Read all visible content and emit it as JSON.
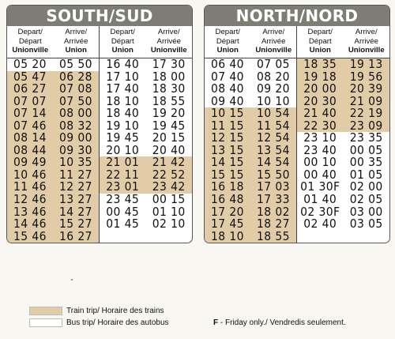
{
  "south": {
    "title": "SOUTH/SUD",
    "headers": [
      {
        "l1": "Depart/",
        "l2": "Départ",
        "station": "Unionville"
      },
      {
        "l1": "Arrive/",
        "l2": "Arrivée",
        "station": "Union"
      },
      {
        "l1": "Depart/",
        "l2": "Départ",
        "station": "Union"
      },
      {
        "l1": "Arrive/",
        "l2": "Arrivée",
        "station": "Unionville"
      }
    ],
    "left": [
      {
        "d": "05 20",
        "a": "05 50",
        "train": false
      },
      {
        "d": "05 47",
        "a": "06 28",
        "train": true
      },
      {
        "d": "06 27",
        "a": "07 08",
        "train": true
      },
      {
        "d": "07 07",
        "a": "07 50",
        "train": true
      },
      {
        "d": "07 14",
        "a": "08 00",
        "train": true
      },
      {
        "d": "07 46",
        "a": "08 32",
        "train": true
      },
      {
        "d": "08 14",
        "a": "09 00",
        "train": true
      },
      {
        "d": "08 44",
        "a": "09 30",
        "train": true
      },
      {
        "d": "09 49",
        "a": "10 35",
        "train": true
      },
      {
        "d": "10 46",
        "a": "11 27",
        "train": true
      },
      {
        "d": "11 46",
        "a": "12 27",
        "train": true
      },
      {
        "d": "12 46",
        "a": "13 27",
        "train": true
      },
      {
        "d": "13 46",
        "a": "14 27",
        "train": true
      },
      {
        "d": "14 46",
        "a": "15 27",
        "train": true
      },
      {
        "d": "15 46",
        "a": "16 27",
        "train": true
      }
    ],
    "right": [
      {
        "d": "16 40",
        "a": "17 30",
        "train": false
      },
      {
        "d": "17 10",
        "a": "18 00",
        "train": false
      },
      {
        "d": "17 40",
        "a": "18 30",
        "train": false
      },
      {
        "d": "18 10",
        "a": "18 55",
        "train": false
      },
      {
        "d": "18 40",
        "a": "19 20",
        "train": false
      },
      {
        "d": "19 10",
        "a": "19 45",
        "train": false
      },
      {
        "d": "19 45",
        "a": "20 15",
        "train": false
      },
      {
        "d": "20 10",
        "a": "20 40",
        "train": false
      },
      {
        "d": "21 01",
        "a": "21 42",
        "train": true
      },
      {
        "d": "22 11",
        "a": "22 52",
        "train": true
      },
      {
        "d": "23 01",
        "a": "23 42",
        "train": true
      },
      {
        "d": "23 45",
        "a": "00 15",
        "train": false
      },
      {
        "d": "00 45",
        "a": "01 10",
        "train": false
      },
      {
        "d": "01 45",
        "a": "02 10",
        "train": false
      }
    ]
  },
  "north": {
    "title": "NORTH/NORD",
    "headers": [
      {
        "l1": "Depart/",
        "l2": "Départ",
        "station": "Union"
      },
      {
        "l1": "Arrive/",
        "l2": "Arrivée",
        "station": "Unionville"
      },
      {
        "l1": "Depart/",
        "l2": "Départ",
        "station": "Union"
      },
      {
        "l1": "Arrive/",
        "l2": "Arrivée",
        "station": "Unionville"
      }
    ],
    "left": [
      {
        "d": "06 40",
        "a": "07 05",
        "train": false
      },
      {
        "d": "07 40",
        "a": "08 20",
        "train": false
      },
      {
        "d": "08 40",
        "a": "09 20",
        "train": false
      },
      {
        "d": "09 40",
        "a": "10 10",
        "train": false
      },
      {
        "d": "10 15",
        "a": "10 54",
        "train": true
      },
      {
        "d": "11 15",
        "a": "11 54",
        "train": true
      },
      {
        "d": "12 15",
        "a": "12 54",
        "train": true
      },
      {
        "d": "13 15",
        "a": "13 54",
        "train": true
      },
      {
        "d": "14 15",
        "a": "14 54",
        "train": true
      },
      {
        "d": "15 15",
        "a": "15 50",
        "train": true
      },
      {
        "d": "16 18",
        "a": "17 03",
        "train": true
      },
      {
        "d": "16 48",
        "a": "17 33",
        "train": true
      },
      {
        "d": "17 20",
        "a": "18 02",
        "train": true
      },
      {
        "d": "17 45",
        "a": "18 27",
        "train": true
      },
      {
        "d": "18 10",
        "a": "18 55",
        "train": true
      }
    ],
    "right": [
      {
        "d": "18 35",
        "a": "19 13",
        "train": true
      },
      {
        "d": "19 18",
        "a": "19 56",
        "train": true
      },
      {
        "d": "20 00",
        "a": "20 39",
        "train": true
      },
      {
        "d": "20 30",
        "a": "21 09",
        "train": true
      },
      {
        "d": "21 40",
        "a": "22 19",
        "train": true
      },
      {
        "d": "22 30",
        "a": "23 09",
        "train": true
      },
      {
        "d": "23 10",
        "a": "23 35",
        "train": false
      },
      {
        "d": "23 40",
        "a": "00 05",
        "train": false
      },
      {
        "d": "00 10",
        "a": "00 35",
        "train": false
      },
      {
        "d": "00 40",
        "a": "01 05",
        "train": false
      },
      {
        "d": "01 30F",
        "a": "02 00",
        "train": false
      },
      {
        "d": "01 40",
        "a": "02 05",
        "train": false
      },
      {
        "d": "02 30F",
        "a": "03 00",
        "train": false
      },
      {
        "d": "02 40",
        "a": "03 05",
        "train": false
      }
    ]
  },
  "legend": {
    "train_label": "Train trip/ Horaire des trains",
    "bus_label": "Bus trip/ Horaire des autobus",
    "train_color": "#e2cca8",
    "bus_color": "#ffffff"
  },
  "footnote": {
    "marker": "F",
    "text": " - Friday only./ Vendredis seulement."
  }
}
